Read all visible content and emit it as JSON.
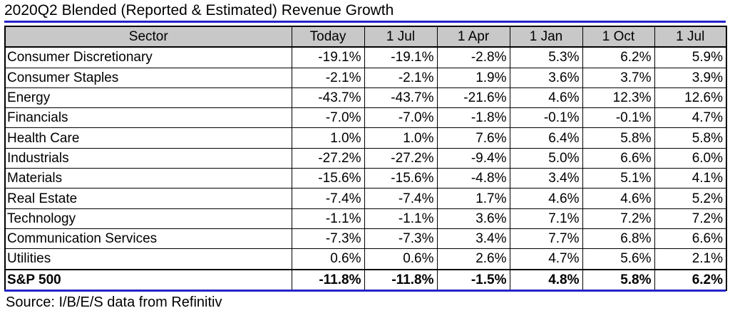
{
  "title": "2020Q2 Blended (Reported & Estimated) Revenue Growth",
  "colors": {
    "rule": "#2323c8",
    "header_bg": "#c8c8c8",
    "border": "#000000"
  },
  "table": {
    "columns": [
      "Sector",
      "Today",
      "1 Jul",
      "1 Apr",
      "1 Jan",
      "1 Oct",
      "1 Jul"
    ],
    "rows": [
      {
        "sector": "Consumer Discretionary",
        "values": [
          "-19.1%",
          "-19.1%",
          "-2.8%",
          "5.3%",
          "6.2%",
          "5.9%"
        ]
      },
      {
        "sector": "Consumer Staples",
        "values": [
          "-2.1%",
          "-2.1%",
          "1.9%",
          "3.6%",
          "3.7%",
          "3.9%"
        ]
      },
      {
        "sector": "Energy",
        "values": [
          "-43.7%",
          "-43.7%",
          "-21.6%",
          "4.6%",
          "12.3%",
          "12.6%"
        ]
      },
      {
        "sector": "Financials",
        "values": [
          "-7.0%",
          "-7.0%",
          "-1.8%",
          "-0.1%",
          "-0.1%",
          "4.7%"
        ]
      },
      {
        "sector": "Health Care",
        "values": [
          "1.0%",
          "1.0%",
          "7.6%",
          "6.4%",
          "5.8%",
          "5.8%"
        ]
      },
      {
        "sector": "Industrials",
        "values": [
          "-27.2%",
          "-27.2%",
          "-9.4%",
          "5.0%",
          "6.6%",
          "6.0%"
        ]
      },
      {
        "sector": "Materials",
        "values": [
          "-15.6%",
          "-15.6%",
          "-4.8%",
          "3.4%",
          "5.1%",
          "4.1%"
        ]
      },
      {
        "sector": "Real Estate",
        "values": [
          "-7.4%",
          "-7.4%",
          "1.7%",
          "4.6%",
          "4.6%",
          "5.2%"
        ]
      },
      {
        "sector": "Technology",
        "values": [
          "-1.1%",
          "-1.1%",
          "3.6%",
          "7.1%",
          "7.2%",
          "7.2%"
        ]
      },
      {
        "sector": "Communication Services",
        "values": [
          "-7.3%",
          "-7.3%",
          "3.4%",
          "7.7%",
          "6.8%",
          "6.6%"
        ]
      },
      {
        "sector": "Utilities",
        "values": [
          "0.6%",
          "0.6%",
          "2.6%",
          "4.7%",
          "5.6%",
          "2.1%"
        ]
      }
    ],
    "total": {
      "sector": "S&P 500",
      "values": [
        "-11.8%",
        "-11.8%",
        "-1.5%",
        "4.8%",
        "5.8%",
        "6.2%"
      ]
    }
  },
  "source": "Source: I/B/E/S data from Refinitiv"
}
